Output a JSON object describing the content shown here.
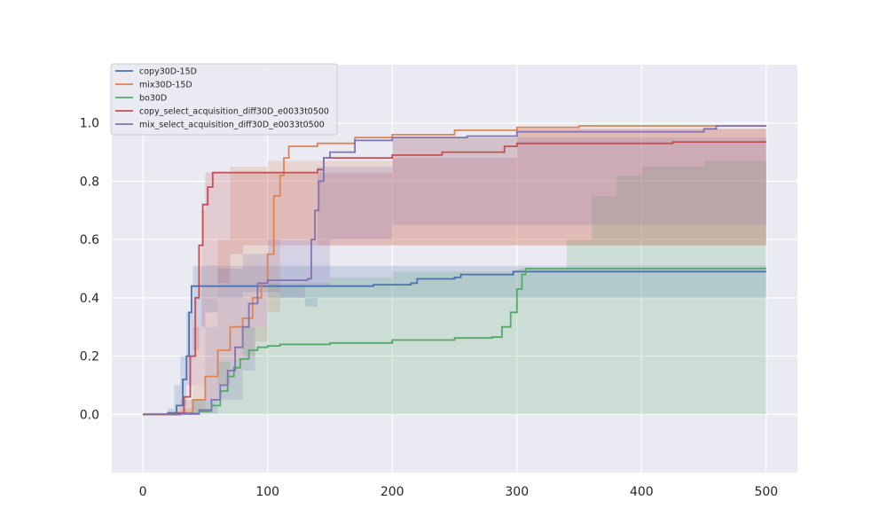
{
  "chart_data": {
    "type": "line",
    "title": "",
    "xlabel": "",
    "ylabel": "",
    "xlim": [
      -25,
      525
    ],
    "ylim": [
      -0.2,
      1.2
    ],
    "xticks": [
      0,
      100,
      200,
      300,
      400,
      500
    ],
    "yticks": [
      0.0,
      0.2,
      0.4,
      0.6,
      0.8,
      1.0
    ],
    "xtick_labels": [
      "0",
      "100",
      "200",
      "300",
      "400",
      "500"
    ],
    "ytick_labels": [
      "0.0",
      "0.2",
      "0.4",
      "0.6",
      "0.8",
      "1.0"
    ],
    "grid": true,
    "background": "#eaeaf2",
    "legend_position": "top-left",
    "series": [
      {
        "name": "copy30D-15D",
        "color": "#4c72b0",
        "mean": [
          [
            0,
            0
          ],
          [
            20,
            0.005
          ],
          [
            27,
            0.03
          ],
          [
            32,
            0.12
          ],
          [
            35,
            0.2
          ],
          [
            37,
            0.35
          ],
          [
            39,
            0.44
          ],
          [
            100,
            0.44
          ],
          [
            180,
            0.44
          ],
          [
            185,
            0.445
          ],
          [
            215,
            0.45
          ],
          [
            220,
            0.465
          ],
          [
            250,
            0.47
          ],
          [
            255,
            0.48
          ],
          [
            290,
            0.48
          ],
          [
            297,
            0.49
          ],
          [
            500,
            0.49
          ]
        ],
        "lower": [
          [
            0,
            0
          ],
          [
            25,
            0
          ],
          [
            30,
            0.03
          ],
          [
            35,
            0.1
          ],
          [
            40,
            0.22
          ],
          [
            45,
            0.3
          ],
          [
            50,
            0.35
          ],
          [
            60,
            0.4
          ],
          [
            80,
            0.42
          ],
          [
            100,
            0.42
          ],
          [
            110,
            0.4
          ],
          [
            130,
            0.37
          ],
          [
            140,
            0.4
          ],
          [
            500,
            0.4
          ]
        ],
        "upper": [
          [
            0,
            0
          ],
          [
            20,
            0.02
          ],
          [
            25,
            0.1
          ],
          [
            30,
            0.2
          ],
          [
            35,
            0.35
          ],
          [
            40,
            0.51
          ],
          [
            100,
            0.51
          ],
          [
            200,
            0.51
          ],
          [
            500,
            0.5
          ]
        ]
      },
      {
        "name": "mix30D-15D",
        "color": "#dd8452",
        "mean": [
          [
            0,
            0
          ],
          [
            28,
            0.005
          ],
          [
            40,
            0.05
          ],
          [
            50,
            0.13
          ],
          [
            60,
            0.22
          ],
          [
            70,
            0.3
          ],
          [
            80,
            0.33
          ],
          [
            88,
            0.4
          ],
          [
            95,
            0.45
          ],
          [
            100,
            0.55
          ],
          [
            105,
            0.75
          ],
          [
            110,
            0.82
          ],
          [
            113,
            0.88
          ],
          [
            117,
            0.92
          ],
          [
            140,
            0.93
          ],
          [
            170,
            0.95
          ],
          [
            200,
            0.96
          ],
          [
            250,
            0.975
          ],
          [
            300,
            0.985
          ],
          [
            350,
            0.99
          ],
          [
            500,
            0.99
          ]
        ],
        "lower": [
          [
            0,
            0
          ],
          [
            30,
            0
          ],
          [
            40,
            0.01
          ],
          [
            50,
            0.05
          ],
          [
            60,
            0.1
          ],
          [
            70,
            0.18
          ],
          [
            80,
            0.2
          ],
          [
            90,
            0.25
          ],
          [
            100,
            0.35
          ],
          [
            110,
            0.6
          ],
          [
            140,
            0.58
          ],
          [
            500,
            0.58
          ]
        ],
        "upper": [
          [
            0,
            0
          ],
          [
            30,
            0.02
          ],
          [
            40,
            0.1
          ],
          [
            50,
            0.3
          ],
          [
            60,
            0.6
          ],
          [
            70,
            0.85
          ],
          [
            100,
            0.87
          ],
          [
            200,
            0.95
          ],
          [
            300,
            0.98
          ],
          [
            500,
            0.99
          ]
        ]
      },
      {
        "name": "bo30D",
        "color": "#55a868",
        "mean": [
          [
            0,
            0
          ],
          [
            30,
            0.001
          ],
          [
            45,
            0.01
          ],
          [
            55,
            0.03
          ],
          [
            62,
            0.08
          ],
          [
            68,
            0.13
          ],
          [
            73,
            0.16
          ],
          [
            78,
            0.19
          ],
          [
            85,
            0.22
          ],
          [
            92,
            0.23
          ],
          [
            100,
            0.235
          ],
          [
            110,
            0.24
          ],
          [
            150,
            0.245
          ],
          [
            200,
            0.255
          ],
          [
            250,
            0.262
          ],
          [
            280,
            0.265
          ],
          [
            288,
            0.3
          ],
          [
            295,
            0.35
          ],
          [
            300,
            0.43
          ],
          [
            304,
            0.48
          ],
          [
            307,
            0.5
          ],
          [
            500,
            0.5
          ]
        ],
        "lower": [
          [
            0,
            0
          ],
          [
            500,
            0.03
          ]
        ],
        "upper": [
          [
            0,
            0
          ],
          [
            40,
            0.05
          ],
          [
            60,
            0.18
          ],
          [
            80,
            0.3
          ],
          [
            100,
            0.45
          ],
          [
            150,
            0.47
          ],
          [
            200,
            0.49
          ],
          [
            300,
            0.5
          ],
          [
            340,
            0.6
          ],
          [
            360,
            0.75
          ],
          [
            380,
            0.82
          ],
          [
            400,
            0.85
          ],
          [
            450,
            0.87
          ],
          [
            500,
            0.87
          ]
        ]
      },
      {
        "name": "copy_select_acquisition_diff30D_e0033t0500",
        "color": "#c44e52",
        "mean": [
          [
            0,
            0
          ],
          [
            27,
            0.005
          ],
          [
            33,
            0.06
          ],
          [
            38,
            0.2
          ],
          [
            42,
            0.4
          ],
          [
            45,
            0.58
          ],
          [
            48,
            0.72
          ],
          [
            52,
            0.78
          ],
          [
            56,
            0.83
          ],
          [
            100,
            0.83
          ],
          [
            140,
            0.84
          ],
          [
            145,
            0.88
          ],
          [
            190,
            0.88
          ],
          [
            200,
            0.89
          ],
          [
            240,
            0.9
          ],
          [
            290,
            0.92
          ],
          [
            300,
            0.93
          ],
          [
            420,
            0.93
          ],
          [
            425,
            0.935
          ],
          [
            500,
            0.935
          ]
        ],
        "lower": [
          [
            0,
            0
          ],
          [
            30,
            0
          ],
          [
            40,
            0.1
          ],
          [
            50,
            0.3
          ],
          [
            60,
            0.45
          ],
          [
            70,
            0.55
          ],
          [
            80,
            0.58
          ],
          [
            100,
            0.58
          ],
          [
            200,
            0.58
          ],
          [
            500,
            0.58
          ]
        ],
        "upper": [
          [
            0,
            0
          ],
          [
            30,
            0.05
          ],
          [
            40,
            0.3
          ],
          [
            47,
            0.7
          ],
          [
            50,
            0.83
          ],
          [
            150,
            0.83
          ],
          [
            200,
            0.88
          ],
          [
            300,
            0.98
          ],
          [
            500,
            0.99
          ]
        ]
      },
      {
        "name": "mix_select_acquisition_diff30D_e0033t0500",
        "color": "#8172b2",
        "mean": [
          [
            0,
            0
          ],
          [
            30,
            0.003
          ],
          [
            45,
            0.015
          ],
          [
            55,
            0.05
          ],
          [
            62,
            0.1
          ],
          [
            68,
            0.15
          ],
          [
            74,
            0.23
          ],
          [
            80,
            0.3
          ],
          [
            85,
            0.38
          ],
          [
            92,
            0.45
          ],
          [
            100,
            0.46
          ],
          [
            132,
            0.465
          ],
          [
            135,
            0.6
          ],
          [
            138,
            0.7
          ],
          [
            141,
            0.8
          ],
          [
            145,
            0.88
          ],
          [
            150,
            0.9
          ],
          [
            160,
            0.9
          ],
          [
            170,
            0.94
          ],
          [
            200,
            0.95
          ],
          [
            260,
            0.955
          ],
          [
            300,
            0.97
          ],
          [
            450,
            0.98
          ],
          [
            460,
            0.99
          ],
          [
            500,
            0.99
          ]
        ],
        "lower": [
          [
            0,
            0
          ],
          [
            40,
            0.003
          ],
          [
            60,
            0.05
          ],
          [
            80,
            0.15
          ],
          [
            90,
            0.3
          ],
          [
            100,
            0.4
          ],
          [
            130,
            0.44
          ],
          [
            150,
            0.6
          ],
          [
            200,
            0.65
          ],
          [
            500,
            0.65
          ]
        ],
        "upper": [
          [
            0,
            0
          ],
          [
            40,
            0.05
          ],
          [
            50,
            0.3
          ],
          [
            60,
            0.5
          ],
          [
            80,
            0.55
          ],
          [
            100,
            0.6
          ],
          [
            140,
            0.85
          ],
          [
            200,
            0.95
          ],
          [
            500,
            0.99
          ]
        ]
      }
    ]
  }
}
